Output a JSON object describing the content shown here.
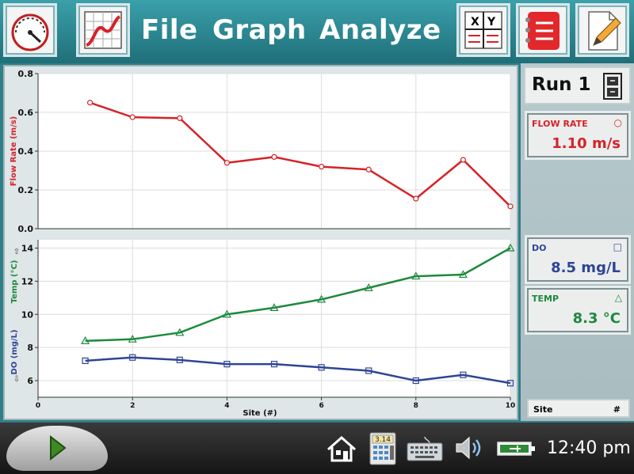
{
  "menu": {
    "file": "File",
    "graph": "Graph",
    "analyze": "Analyze"
  },
  "toolbar_icons": [
    "meter-gauge-icon",
    "graph-view-icon",
    "table-xy-icon",
    "notebook-icon",
    "edit-document-icon"
  ],
  "run": {
    "label": "Run 1"
  },
  "meters": {
    "flow": {
      "name": "FLOW RATE",
      "symbol": "○",
      "value": "1.10 m/s",
      "color": "#d62228"
    },
    "do": {
      "name": "DO",
      "symbol": "□",
      "value": "8.5 mg/L",
      "color": "#2e4596"
    },
    "temp": {
      "name": "TEMP",
      "symbol": "△",
      "value": "8.3 °C",
      "color": "#1d8a3c"
    }
  },
  "site_bar": {
    "name": "Site",
    "unit": "#"
  },
  "clock": {
    "time": "12:40 pm"
  },
  "calculator_label": "3.14",
  "chart_data": [
    {
      "type": "line",
      "x": [
        1.1,
        2,
        3,
        4,
        5,
        6,
        7,
        8,
        9,
        10
      ],
      "series": [
        {
          "name": "Flow Rate",
          "color": "#d62228",
          "marker": "circle",
          "values": [
            0.65,
            0.575,
            0.57,
            0.34,
            0.37,
            0.32,
            0.305,
            0.155,
            0.355,
            0.115
          ]
        }
      ],
      "ylabel": "Flow Rate (m/s)",
      "xlim": [
        0,
        10
      ],
      "ylim": [
        0,
        0.8
      ],
      "yticks": [
        "0.0",
        "0.2",
        "0.4",
        "0.6",
        "0.8"
      ],
      "grid": true
    },
    {
      "type": "line",
      "x": [
        1,
        2,
        3,
        4,
        5,
        6,
        7,
        8,
        9,
        10
      ],
      "series": [
        {
          "name": "Temp",
          "color": "#1d8a3c",
          "marker": "triangle",
          "values": [
            8.4,
            8.5,
            8.9,
            10.0,
            10.4,
            10.9,
            11.6,
            12.3,
            12.4,
            14.0
          ]
        },
        {
          "name": "DO",
          "color": "#2e4596",
          "marker": "square",
          "values": [
            7.2,
            7.4,
            7.25,
            7.0,
            7.0,
            6.8,
            6.6,
            6.0,
            6.35,
            5.85
          ]
        }
      ],
      "ylabel_temp": "Temp (°C)",
      "ylabel_do": "DO (mg/L)",
      "xlabel": "Site  (#)",
      "xlim": [
        0,
        10
      ],
      "ylim": [
        5,
        14.5
      ],
      "xticks": [
        "0",
        "2",
        "4",
        "6",
        "8",
        "10"
      ],
      "yticks": [
        "6",
        "8",
        "10",
        "12",
        "14"
      ],
      "grid": true
    }
  ]
}
